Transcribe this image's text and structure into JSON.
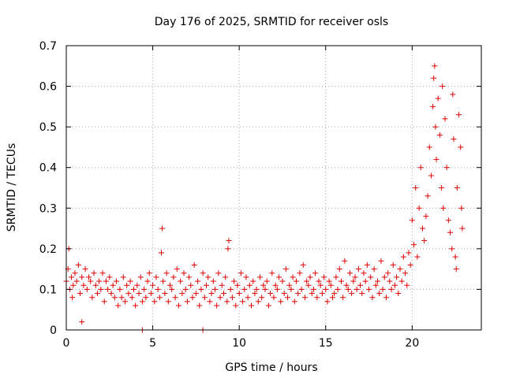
{
  "chart_data": {
    "type": "scatter",
    "title": "Day 176 of 2025, SRMTID for receiver osls",
    "xlabel": "GPS time / hours",
    "ylabel": "SRMTID / TECUs",
    "xlim": [
      0,
      24
    ],
    "ylim": [
      0,
      0.7
    ],
    "xticks": [
      0,
      5,
      10,
      15,
      20
    ],
    "yticks": [
      0,
      0.1,
      0.2,
      0.3,
      0.4,
      0.5,
      0.6,
      0.7
    ],
    "xtick_labels": [
      "0",
      "5",
      "10",
      "15",
      "20"
    ],
    "ytick_labels": [
      "0",
      "0.1",
      "0.2",
      "0.3",
      "0.4",
      "0.5",
      "0.6",
      "0.7"
    ],
    "grid": true,
    "marker": "+",
    "color": "#e00000",
    "series": [
      {
        "name": "osls",
        "x": [
          0.0,
          0.1,
          0.15,
          0.2,
          0.3,
          0.35,
          0.4,
          0.5,
          0.6,
          0.7,
          0.8,
          0.9,
          1.0,
          1.1,
          1.2,
          1.3,
          1.4,
          1.5,
          1.6,
          1.7,
          1.8,
          1.9,
          2.0,
          2.1,
          2.2,
          2.3,
          2.4,
          2.5,
          2.6,
          2.7,
          2.8,
          2.9,
          3.0,
          3.1,
          3.2,
          3.3,
          3.4,
          3.5,
          3.6,
          3.7,
          3.8,
          3.9,
          4.0,
          4.1,
          4.2,
          4.3,
          4.4,
          4.5,
          4.6,
          4.7,
          4.8,
          4.9,
          5.0,
          5.1,
          5.2,
          5.3,
          5.4,
          5.5,
          5.55,
          5.6,
          5.7,
          5.8,
          5.9,
          6.0,
          6.1,
          6.2,
          6.3,
          6.4,
          6.5,
          6.6,
          6.7,
          6.8,
          6.9,
          7.0,
          7.1,
          7.2,
          7.3,
          7.4,
          7.5,
          7.6,
          7.7,
          7.8,
          7.9,
          8.0,
          8.1,
          8.2,
          8.3,
          8.4,
          8.5,
          8.6,
          8.7,
          8.8,
          8.9,
          9.0,
          9.1,
          9.2,
          9.3,
          9.35,
          9.4,
          9.5,
          9.6,
          9.7,
          9.8,
          9.9,
          10.0,
          10.1,
          10.2,
          10.3,
          10.4,
          10.5,
          10.6,
          10.7,
          10.8,
          10.9,
          11.0,
          11.1,
          11.2,
          11.3,
          11.4,
          11.5,
          11.6,
          11.7,
          11.8,
          11.9,
          12.0,
          12.1,
          12.2,
          12.3,
          12.4,
          12.5,
          12.6,
          12.7,
          12.8,
          12.9,
          13.0,
          13.1,
          13.2,
          13.3,
          13.4,
          13.5,
          13.6,
          13.7,
          13.8,
          13.9,
          14.0,
          14.1,
          14.2,
          14.3,
          14.4,
          14.5,
          14.6,
          14.7,
          14.8,
          14.9,
          15.0,
          15.1,
          15.2,
          15.3,
          15.4,
          15.5,
          15.6,
          15.7,
          15.8,
          15.9,
          16.0,
          16.1,
          16.2,
          16.3,
          16.4,
          16.5,
          16.6,
          16.7,
          16.8,
          16.9,
          17.0,
          17.1,
          17.2,
          17.3,
          17.4,
          17.5,
          17.6,
          17.7,
          17.8,
          17.9,
          18.0,
          18.1,
          18.2,
          18.3,
          18.4,
          18.5,
          18.6,
          18.7,
          18.8,
          18.9,
          19.0,
          19.1,
          19.2,
          19.3,
          19.4,
          19.5,
          19.6,
          19.7,
          19.8,
          19.9,
          20.0,
          20.1,
          20.2,
          20.3,
          20.4,
          20.5,
          20.6,
          20.7,
          20.8,
          20.9,
          21.0,
          21.1,
          21.2,
          21.25,
          21.3,
          21.35,
          21.4,
          21.5,
          21.6,
          21.7,
          21.75,
          21.8,
          21.9,
          22.0,
          22.1,
          22.2,
          22.3,
          22.35,
          22.4,
          22.5,
          22.55,
          22.6,
          22.7,
          22.8,
          22.85,
          22.9,
          0.9,
          4.4,
          7.9
        ],
        "y": [
          0.12,
          0.15,
          0.2,
          0.1,
          0.13,
          0.08,
          0.11,
          0.14,
          0.12,
          0.16,
          0.09,
          0.13,
          0.11,
          0.15,
          0.1,
          0.13,
          0.12,
          0.08,
          0.14,
          0.11,
          0.09,
          0.12,
          0.1,
          0.14,
          0.07,
          0.12,
          0.1,
          0.13,
          0.09,
          0.11,
          0.08,
          0.12,
          0.06,
          0.1,
          0.08,
          0.13,
          0.07,
          0.11,
          0.09,
          0.12,
          0.08,
          0.1,
          0.06,
          0.11,
          0.09,
          0.13,
          0.07,
          0.1,
          0.08,
          0.12,
          0.14,
          0.09,
          0.11,
          0.07,
          0.13,
          0.1,
          0.08,
          0.19,
          0.25,
          0.12,
          0.09,
          0.14,
          0.07,
          0.11,
          0.1,
          0.13,
          0.08,
          0.15,
          0.06,
          0.12,
          0.09,
          0.14,
          0.1,
          0.07,
          0.13,
          0.11,
          0.08,
          0.16,
          0.09,
          0.12,
          0.06,
          0.1,
          0.14,
          0.08,
          0.11,
          0.13,
          0.07,
          0.09,
          0.12,
          0.1,
          0.06,
          0.14,
          0.08,
          0.11,
          0.09,
          0.13,
          0.07,
          0.2,
          0.22,
          0.1,
          0.08,
          0.12,
          0.06,
          0.11,
          0.09,
          0.14,
          0.07,
          0.1,
          0.13,
          0.08,
          0.11,
          0.06,
          0.12,
          0.09,
          0.1,
          0.07,
          0.13,
          0.08,
          0.11,
          0.1,
          0.12,
          0.06,
          0.09,
          0.14,
          0.08,
          0.11,
          0.1,
          0.13,
          0.07,
          0.12,
          0.09,
          0.15,
          0.08,
          0.11,
          0.1,
          0.13,
          0.07,
          0.12,
          0.09,
          0.14,
          0.1,
          0.16,
          0.08,
          0.12,
          0.11,
          0.13,
          0.09,
          0.1,
          0.14,
          0.08,
          0.12,
          0.11,
          0.09,
          0.13,
          0.1,
          0.07,
          0.12,
          0.11,
          0.08,
          0.09,
          0.13,
          0.1,
          0.15,
          0.12,
          0.08,
          0.17,
          0.11,
          0.1,
          0.14,
          0.09,
          0.12,
          0.13,
          0.1,
          0.15,
          0.11,
          0.09,
          0.14,
          0.12,
          0.16,
          0.1,
          0.13,
          0.08,
          0.15,
          0.11,
          0.12,
          0.09,
          0.17,
          0.1,
          0.13,
          0.08,
          0.14,
          0.12,
          0.1,
          0.16,
          0.11,
          0.13,
          0.09,
          0.15,
          0.12,
          0.18,
          0.14,
          0.11,
          0.19,
          0.16,
          0.27,
          0.21,
          0.35,
          0.18,
          0.3,
          0.4,
          0.25,
          0.22,
          0.28,
          0.33,
          0.45,
          0.38,
          0.55,
          0.62,
          0.65,
          0.5,
          0.42,
          0.57,
          0.48,
          0.35,
          0.6,
          0.3,
          0.52,
          0.4,
          0.27,
          0.24,
          0.2,
          0.58,
          0.47,
          0.18,
          0.15,
          0.35,
          0.53,
          0.45,
          0.3,
          0.25,
          0.02,
          0.0,
          0.0
        ]
      }
    ]
  }
}
